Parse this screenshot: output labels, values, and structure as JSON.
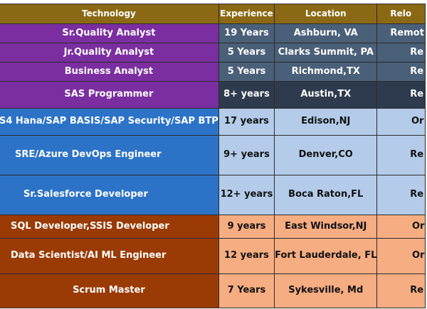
{
  "headers": {
    "technology": "Technology",
    "experience": "Experience",
    "location": "Location",
    "relocation": "Relo"
  },
  "rows": [
    {
      "technology": "Sr.Quality Analyst",
      "experience": "19 Years",
      "location": "Ashburn, VA",
      "relocation": "Remot"
    },
    {
      "technology": "Jr.Quality Analyst",
      "experience": "5 Years",
      "location": "Clarks Summit, PA",
      "relocation": "Re"
    },
    {
      "technology": "Business Analyst",
      "experience": "5 Years",
      "location": "Richmond,TX",
      "relocation": "Re"
    },
    {
      "technology": "SAS Programmer",
      "experience": "8+ years",
      "location": "Austin,TX",
      "relocation": "Re"
    },
    {
      "technology": "S4 Hana/SAP BASIS/SAP Security/SAP BTP",
      "experience": "17 years",
      "location": "Edison,NJ",
      "relocation": "Or"
    },
    {
      "technology": "SRE/Azure DevOps Engineer",
      "experience": "9+ years",
      "location": "Denver,CO",
      "relocation": "Re"
    },
    {
      "technology": "Sr.Salesforce Developer",
      "experience": "12+ years",
      "location": "Boca Raton,FL",
      "relocation": "Re"
    },
    {
      "technology": "SQL Developer,SSIS Developer",
      "experience": "9 years",
      "location": "East Windsor,NJ",
      "relocation": "Or"
    },
    {
      "technology": "Data Scientist/AI ML Engineer",
      "experience": "12 years",
      "location": "Fort Lauderdale, FL",
      "relocation": "Or"
    },
    {
      "technology": "Scrum Master",
      "experience": "7 Years",
      "location": "Sykesville, Md",
      "relocation": "Re"
    }
  ]
}
